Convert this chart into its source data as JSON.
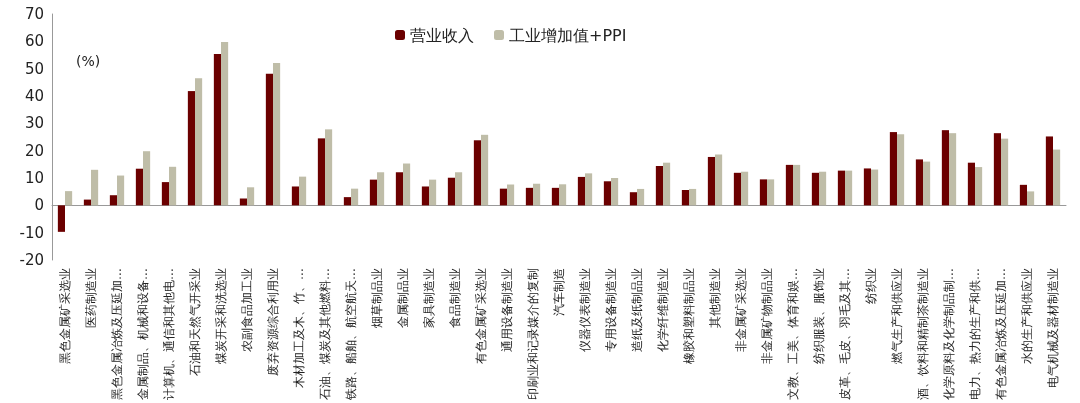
{
  "chart_data": {
    "type": "bar",
    "ylabel": "(%)",
    "categories": [
      "黑色金属矿采选业",
      "医药制造业",
      "黑色金属冶炼及压延加…",
      "金属制品、机械和设备…",
      "计算机、通信和其他电…",
      "石油和天然气开采业",
      "煤炭开采和洗选业",
      "农副食品加工业",
      "废弃资源综合利用业",
      "木材加工及木、竹、…",
      "石油、煤炭及其他燃料…",
      "铁路、船舶、航空航天…",
      "烟草制品业",
      "金属制品业",
      "家具制造业",
      "食品制造业",
      "有色金属矿采选业",
      "通用设备制造业",
      "印刷业和记录媒介的复制",
      "汽车制造",
      "仪器仪表制造业",
      "专用设备制造业",
      "造纸及纸制品业",
      "化学纤维制造业",
      "橡胶和塑料制品业",
      "其他制造业",
      "非金属矿采选业",
      "非金属矿物制品业",
      "文教、工美、体育和娱…",
      "纺织服装、服饰业",
      "皮革、毛皮、羽毛及其…",
      "纺织业",
      "燃气生产和供应业",
      "酒、饮料和精制茶制造业",
      "化学原料及化学制品制…",
      "电力、热力的生产和供…",
      "有色金属冶炼及压延加…",
      "水的生产和供应业",
      "电气机械及器材制造业"
    ],
    "series": [
      {
        "name": "营业收入",
        "color": "#6b0000",
        "values": [
          -9.7,
          2.1,
          3.7,
          13.4,
          8.5,
          41.8,
          55.4,
          2.5,
          48.1,
          6.9,
          24.5,
          3,
          9.4,
          12.1,
          6.9,
          10.1,
          23.8,
          6.1,
          6.4,
          6.4,
          10.4,
          8.8,
          4.8,
          14.4,
          5.6,
          17.7,
          11.9,
          9.5,
          14.8,
          11.9,
          12.7,
          13.5,
          26.8,
          16.8,
          27.5,
          15.6,
          26.4,
          7.5,
          25.2
        ]
      },
      {
        "name": "工业增加值+PPI",
        "color": "#bfbda8",
        "values": [
          5.2,
          13,
          10.9,
          19.8,
          14.1,
          46.5,
          59.8,
          6.6,
          52.1,
          10.5,
          27.8,
          6.1,
          12.1,
          15.3,
          9.4,
          12.1,
          25.8,
          7.6,
          7.9,
          7.7,
          11.7,
          10,
          6,
          15.6,
          6,
          18.6,
          12.3,
          9.5,
          14.8,
          12.3,
          12.7,
          13.1,
          26,
          16,
          26.4,
          14,
          24.4,
          5.1,
          20.4
        ]
      }
    ],
    "ylim": [
      -20,
      70
    ],
    "yticks": [
      -20,
      -10,
      0,
      10,
      20,
      30,
      40,
      50,
      60,
      70
    ],
    "legend": "top"
  }
}
